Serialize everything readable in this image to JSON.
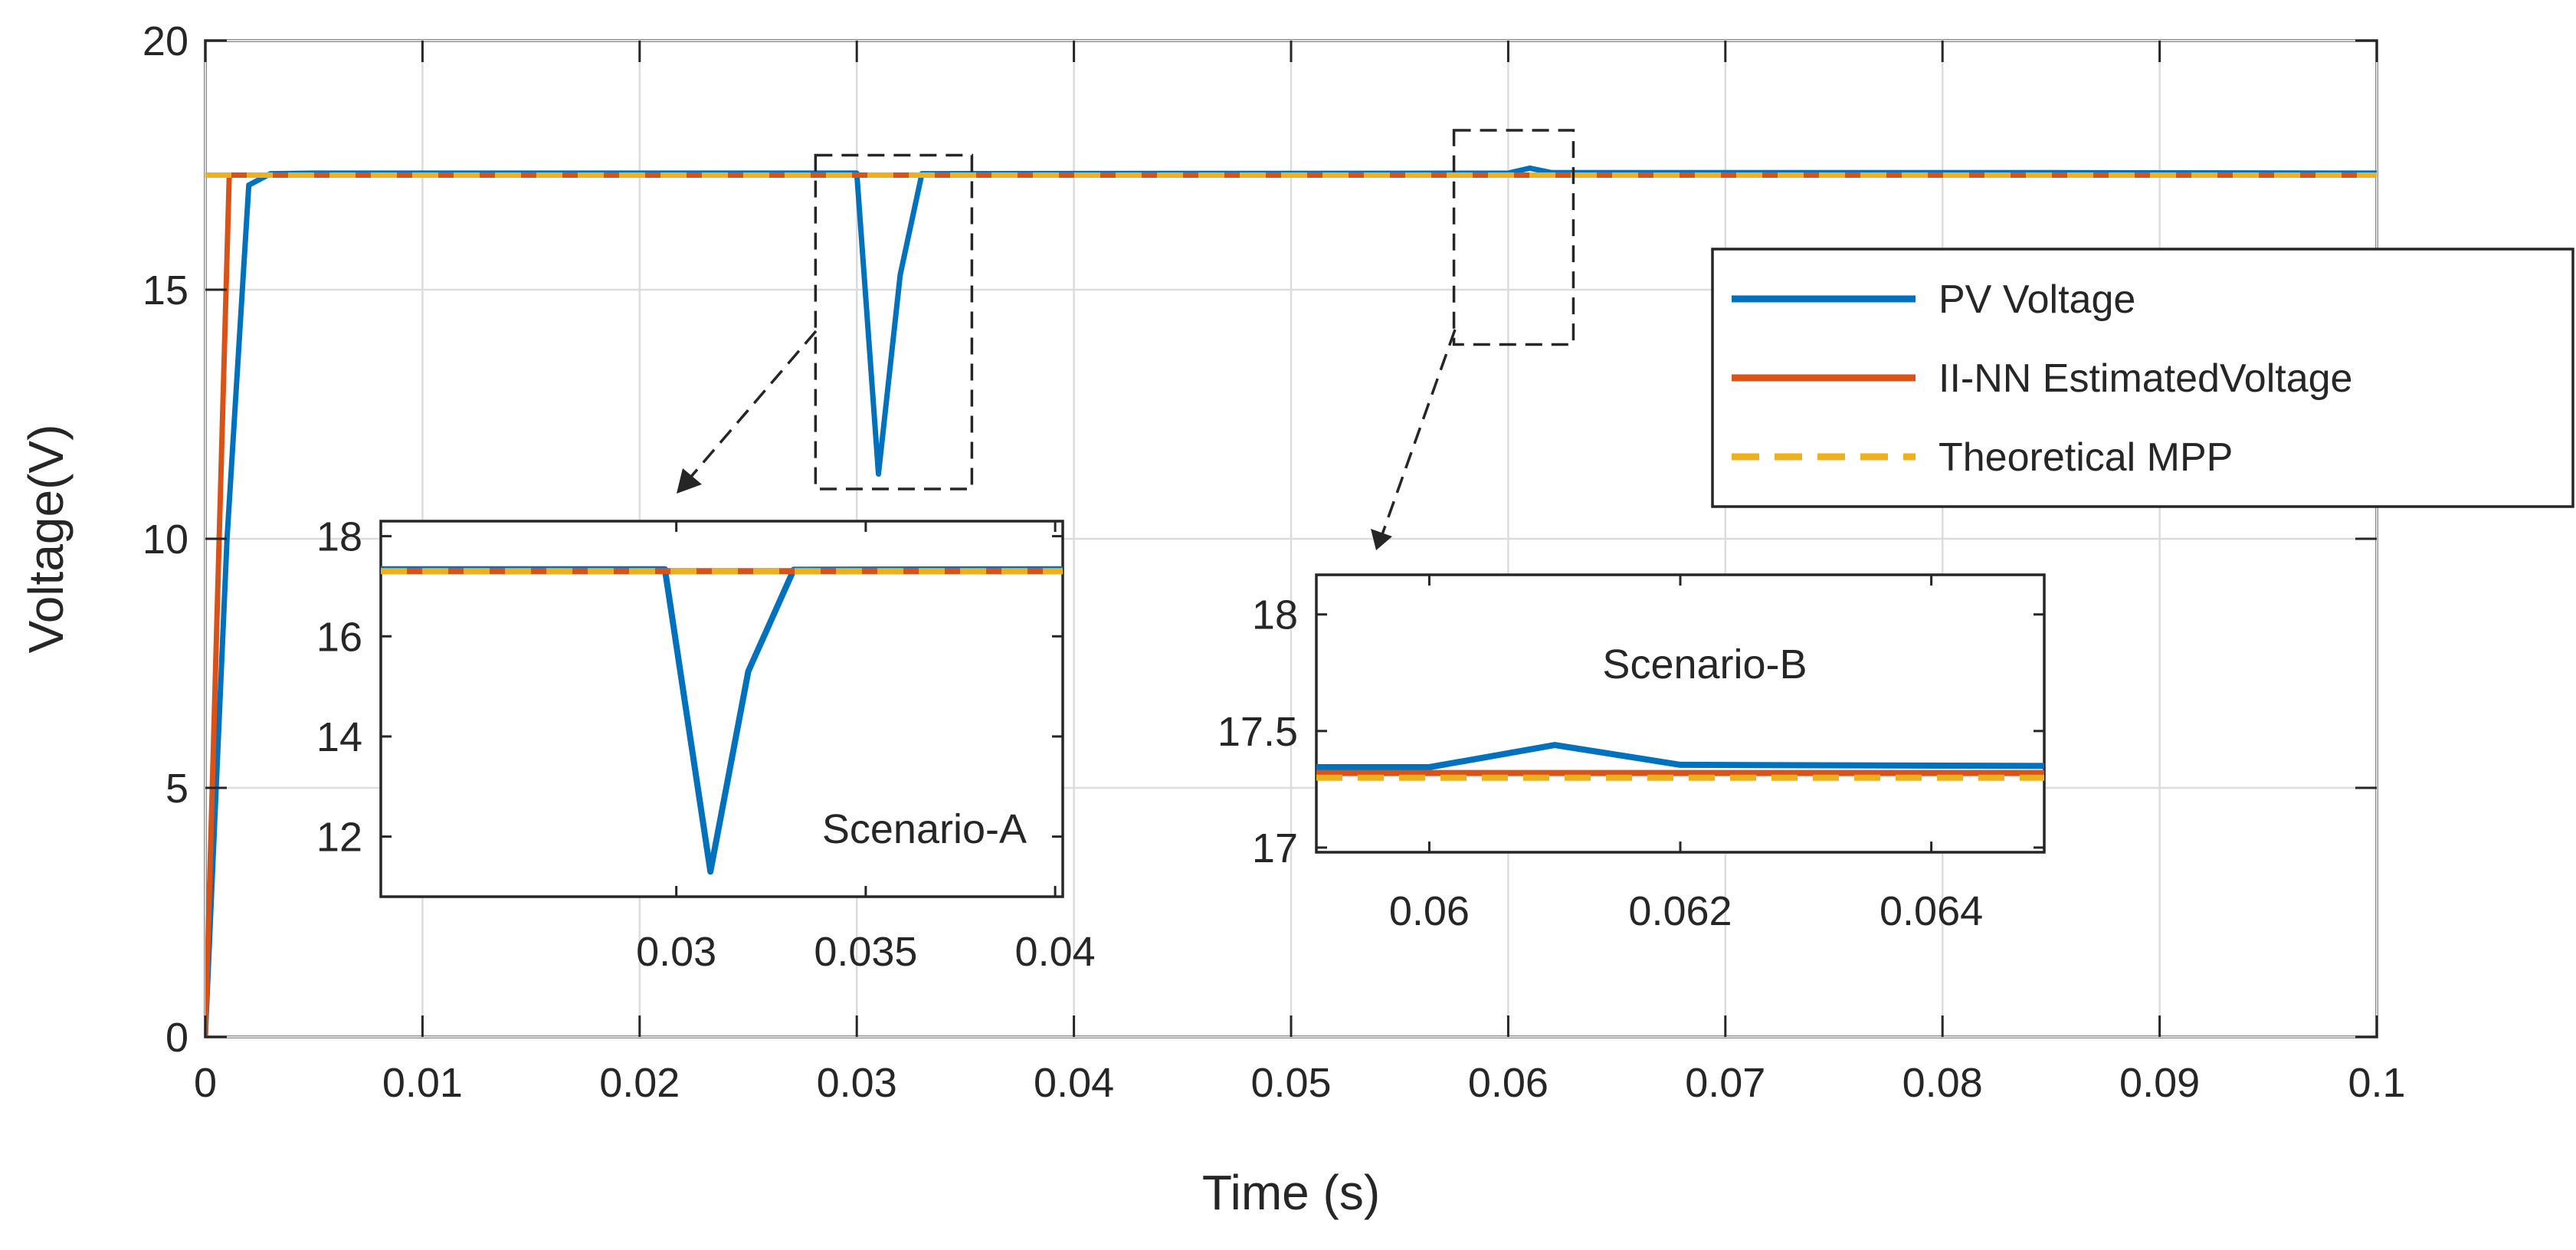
{
  "colors": {
    "pv": "#0072BD",
    "nn": "#D95319",
    "mpp": "#EDB120",
    "axis": "#262626",
    "grid": "#dcdcdc"
  },
  "chart_data": [
    {
      "id": "main",
      "type": "line",
      "xlabel": "Time (s)",
      "ylabel": "Voltage(V)",
      "xlim": [
        0,
        0.1
      ],
      "ylim": [
        0,
        20
      ],
      "xticks": [
        0,
        0.01,
        0.02,
        0.03,
        0.04,
        0.05,
        0.06,
        0.07,
        0.08,
        0.09,
        0.1
      ],
      "xticklabels": [
        "0",
        "0.01",
        "0.02",
        "0.03",
        "0.04",
        "0.05",
        "0.06",
        "0.07",
        "0.08",
        "0.09",
        "0.1"
      ],
      "yticks": [
        0,
        5,
        10,
        15,
        20
      ],
      "yticklabels": [
        "0",
        "5",
        "10",
        "15",
        "20"
      ],
      "grid": true,
      "legend_position": "right",
      "legend": [
        "PV Voltage",
        "II-NN EstimatedVoltage",
        "Theoretical MPP"
      ],
      "series": [
        {
          "name": "PV Voltage",
          "color": "#0072BD",
          "style": "solid",
          "x": [
            0,
            0.001,
            0.002,
            0.003,
            0.005,
            0.03,
            0.031,
            0.032,
            0.033,
            0.06,
            0.061,
            0.062,
            0.085,
            0.1
          ],
          "y": [
            0,
            10,
            17.1,
            17.33,
            17.34,
            17.34,
            11.3,
            15.3,
            17.33,
            17.34,
            17.44,
            17.35,
            17.35,
            17.34
          ]
        },
        {
          "name": "II-NN EstimatedVoltage",
          "color": "#D95319",
          "style": "solid",
          "x": [
            0,
            0.0011,
            0.1
          ],
          "y": [
            0,
            17.3,
            17.3
          ]
        },
        {
          "name": "Theoretical MPP",
          "color": "#EDB120",
          "style": "dashed",
          "x": [
            0,
            0.1
          ],
          "y": [
            17.3,
            17.3
          ]
        }
      ],
      "zoom_boxes": [
        {
          "for": "Scenario-A",
          "xlim": [
            0.0281,
            0.0353
          ],
          "ylim": [
            11,
            17.7
          ]
        },
        {
          "for": "Scenario-B",
          "xlim": [
            0.0575,
            0.063
          ],
          "ylim": [
            13.9,
            18.2
          ]
        }
      ]
    },
    {
      "id": "inset-a",
      "type": "line",
      "title": "Scenario-A",
      "xlim": [
        0.0222,
        0.0402
      ],
      "ylim": [
        10.8,
        18.3
      ],
      "xticks": [
        0.03,
        0.035,
        0.04
      ],
      "xticklabels": [
        "0.03",
        "0.035",
        "0.04"
      ],
      "yticks": [
        12,
        14,
        16,
        18
      ],
      "yticklabels": [
        "12",
        "14",
        "16",
        "18"
      ],
      "grid": false,
      "series": [
        {
          "name": "PV Voltage",
          "color": "#0072BD",
          "style": "solid",
          "x": [
            0.0222,
            0.0297,
            0.0309,
            0.0319,
            0.0331,
            0.0402
          ],
          "y": [
            17.34,
            17.34,
            11.3,
            15.3,
            17.33,
            17.34
          ]
        },
        {
          "name": "II-NN EstimatedVoltage",
          "color": "#D95319",
          "style": "solid",
          "x": [
            0.0222,
            0.0402
          ],
          "y": [
            17.3,
            17.3
          ]
        },
        {
          "name": "Theoretical MPP",
          "color": "#EDB120",
          "style": "dashed",
          "x": [
            0.0222,
            0.0402
          ],
          "y": [
            17.3,
            17.3
          ]
        }
      ]
    },
    {
      "id": "inset-b",
      "type": "line",
      "title": "Scenario-B",
      "xlim": [
        0.0591,
        0.0649
      ],
      "ylim": [
        16.98,
        18.17
      ],
      "xticks": [
        0.06,
        0.062,
        0.064
      ],
      "xticklabels": [
        "0.06",
        "0.062",
        "0.064"
      ],
      "yticks": [
        17,
        17.5,
        18
      ],
      "yticklabels": [
        "17",
        "17.5",
        "18"
      ],
      "grid": false,
      "series": [
        {
          "name": "PV Voltage",
          "color": "#0072BD",
          "style": "solid",
          "x": [
            0.0591,
            0.06,
            0.061,
            0.062,
            0.0649
          ],
          "y": [
            17.345,
            17.345,
            17.44,
            17.355,
            17.35
          ]
        },
        {
          "name": "II-NN EstimatedVoltage",
          "color": "#D95319",
          "style": "solid",
          "x": [
            0.0591,
            0.0649
          ],
          "y": [
            17.32,
            17.32
          ]
        },
        {
          "name": "Theoretical MPP",
          "color": "#EDB120",
          "style": "dashed",
          "x": [
            0.0591,
            0.0649
          ],
          "y": [
            17.3,
            17.3
          ]
        }
      ]
    }
  ]
}
